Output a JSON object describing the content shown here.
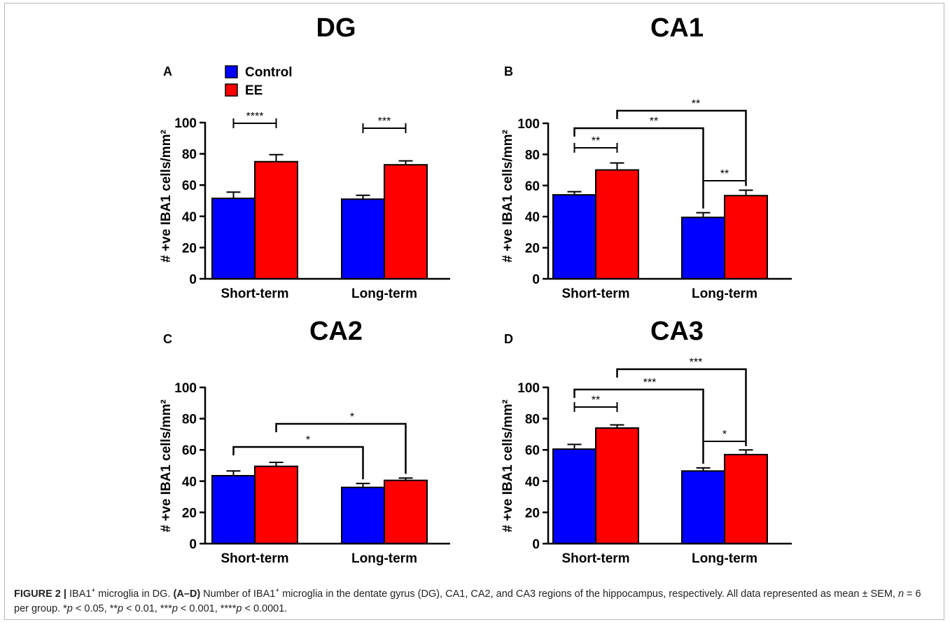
{
  "legend": [
    {
      "name": "Control",
      "color": "#0000ff"
    },
    {
      "name": "EE",
      "color": "#ff0000"
    }
  ],
  "chart_data": [
    {
      "type": "bar",
      "panel": "A",
      "title": "DG",
      "ylabel": "# +ve IBA1 cells/mm²",
      "ylim": [
        0,
        100
      ],
      "yticks": [
        0,
        20,
        40,
        60,
        80,
        100
      ],
      "categories": [
        "Short-term",
        "Long-term"
      ],
      "series": [
        {
          "name": "Control",
          "values": [
            51.5,
            51
          ],
          "errors": [
            4,
            2.5
          ]
        },
        {
          "name": "EE",
          "values": [
            75,
            73
          ],
          "errors": [
            4.5,
            2.5
          ]
        }
      ],
      "annotations": [
        {
          "text": "****",
          "from": "Short-term:Control",
          "to": "Short-term:EE"
        },
        {
          "text": "***",
          "from": "Long-term:Control",
          "to": "Long-term:EE"
        }
      ]
    },
    {
      "type": "bar",
      "panel": "B",
      "title": "CA1",
      "ylabel": "# +ve IBA1 cells/mm²",
      "ylim": [
        0,
        100
      ],
      "yticks": [
        0,
        20,
        40,
        60,
        80,
        100
      ],
      "categories": [
        "Short-term",
        "Long-term"
      ],
      "series": [
        {
          "name": "Control",
          "values": [
            54,
            39.5
          ],
          "errors": [
            2,
            3
          ]
        },
        {
          "name": "EE",
          "values": [
            70,
            53.5
          ],
          "errors": [
            4.5,
            3.5
          ]
        }
      ],
      "annotations": [
        {
          "text": "**",
          "from": "Short-term:Control",
          "to": "Short-term:EE"
        },
        {
          "text": "**",
          "from": "Long-term:Control",
          "to": "Long-term:EE"
        },
        {
          "text": "**",
          "from": "Short-term:Control",
          "to": "Long-term:Control"
        },
        {
          "text": "**",
          "from": "Short-term:EE",
          "to": "Long-term:EE"
        }
      ]
    },
    {
      "type": "bar",
      "panel": "C",
      "title": "CA2",
      "ylabel": "# +ve IBA1 cells/mm²",
      "ylim": [
        0,
        100
      ],
      "yticks": [
        0,
        20,
        40,
        60,
        80,
        100
      ],
      "categories": [
        "Short-term",
        "Long-term"
      ],
      "series": [
        {
          "name": "Control",
          "values": [
            43.5,
            36
          ],
          "errors": [
            3,
            2.5
          ]
        },
        {
          "name": "EE",
          "values": [
            49.5,
            40.5
          ],
          "errors": [
            2.5,
            1.5
          ]
        }
      ],
      "annotations": [
        {
          "text": "*",
          "from": "Short-term:Control",
          "to": "Long-term:Control"
        },
        {
          "text": "*",
          "from": "Short-term:EE",
          "to": "Long-term:EE"
        }
      ]
    },
    {
      "type": "bar",
      "panel": "D",
      "title": "CA3",
      "ylabel": "# +ve IBA1 cells/mm²",
      "ylim": [
        0,
        100
      ],
      "yticks": [
        0,
        20,
        40,
        60,
        80,
        100
      ],
      "categories": [
        "Short-term",
        "Long-term"
      ],
      "series": [
        {
          "name": "Control",
          "values": [
            60.5,
            46.5
          ],
          "errors": [
            3,
            2
          ]
        },
        {
          "name": "EE",
          "values": [
            74,
            57
          ],
          "errors": [
            2,
            3
          ]
        }
      ],
      "annotations": [
        {
          "text": "**",
          "from": "Short-term:Control",
          "to": "Short-term:EE"
        },
        {
          "text": "*",
          "from": "Long-term:Control",
          "to": "Long-term:EE"
        },
        {
          "text": "***",
          "from": "Short-term:Control",
          "to": "Long-term:Control"
        },
        {
          "text": "***",
          "from": "Short-term:EE",
          "to": "Long-term:EE"
        }
      ]
    }
  ],
  "caption": {
    "label": "FIGURE 2 |",
    "title_a": " IBA1",
    "title_sup": "+",
    "title_b": " microglia in DG. ",
    "panels": "(A–D)",
    "body_a": " Number of IBA1",
    "body_sup": "+",
    "body_b": " microglia in the dentate gyrus (DG), CA1, CA2, and CA3 regions of the hippocampus, respectively. All data represented as mean ± SEM, ",
    "n_var": "n",
    "n_rest": " = 6 per group. ",
    "pvalues": [
      {
        "stars": "*",
        "text": " < 0.05, "
      },
      {
        "stars": "**",
        "text": " < 0.01, "
      },
      {
        "stars": "***",
        "text": " < 0.001, "
      },
      {
        "stars": "****",
        "text": " < 0.0001."
      }
    ]
  }
}
